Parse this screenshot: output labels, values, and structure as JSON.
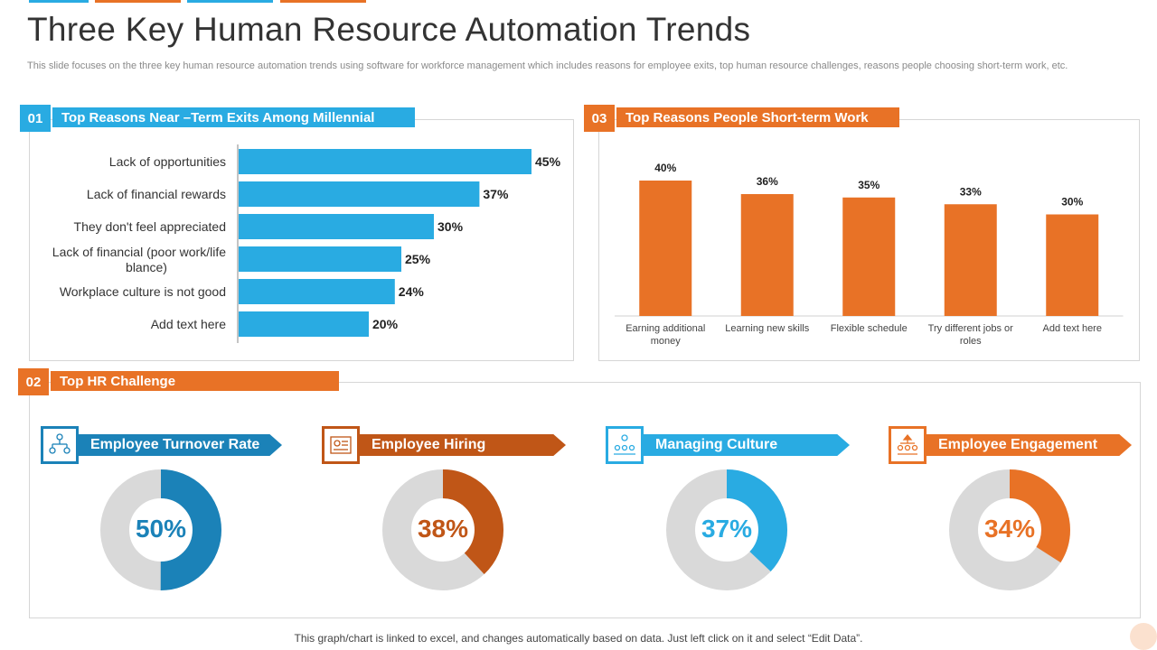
{
  "title": "Three Key Human Resource Automation Trends",
  "subtitle": "This slide focuses on the three key human resource automation trends using software for workforce management which includes reasons for employee exits, top human resource challenges, reasons people choosing short-term work, etc.",
  "colors": {
    "blue": "#29abe2",
    "orange": "#e87226",
    "dark_blue": "#1b82b8",
    "rust": "#c05617",
    "gray": "#d9d9d9"
  },
  "section1": {
    "number": "01",
    "title": "Top Reasons Near –Term Exits Among Millennial"
  },
  "section2": {
    "number": "02",
    "title": "Top HR Challenge",
    "kpis": [
      {
        "label": "Employee Turnover Rate",
        "value_label": "50%",
        "value": 50,
        "icon": "org-chart-icon",
        "color": "#1b82b8"
      },
      {
        "label": "Employee Hiring",
        "value_label": "38%",
        "value": 38,
        "icon": "resume-icon",
        "color": "#c05617"
      },
      {
        "label": "Managing Culture",
        "value_label": "37%",
        "value": 37,
        "icon": "team-icon",
        "color": "#29abe2"
      },
      {
        "label": "Employee Engagement",
        "value_label": "34%",
        "value": 34,
        "icon": "hierarchy-icon",
        "color": "#e87226"
      }
    ]
  },
  "section3": {
    "number": "03",
    "title": "Top Reasons People Short-term Work"
  },
  "footer": "This graph/chart is linked to excel, and changes automatically based on data. Just left click on it and select “Edit Data”.",
  "chart_data": [
    {
      "type": "bar",
      "orientation": "horizontal",
      "categories": [
        "Lack of opportunities",
        "Lack of financial rewards",
        "They don't feel appreciated",
        "Lack of financial (poor work/life blance)",
        "Workplace culture is not good",
        "Add text here"
      ],
      "values": [
        45,
        37,
        30,
        25,
        24,
        20
      ],
      "value_labels": [
        "45%",
        "37%",
        "30%",
        "25%",
        "24%",
        "20%"
      ],
      "xlim": [
        0,
        50
      ],
      "grid": false
    },
    {
      "type": "bar",
      "categories": [
        "Earning additional money",
        "Learning new skills",
        "Flexible schedule",
        "Try different jobs or roles",
        "Add text here"
      ],
      "values": [
        40,
        36,
        35,
        33,
        30
      ],
      "value_labels": [
        "40%",
        "36%",
        "35%",
        "33%",
        "30%"
      ],
      "ylim": [
        0,
        40
      ],
      "grid": false
    }
  ]
}
